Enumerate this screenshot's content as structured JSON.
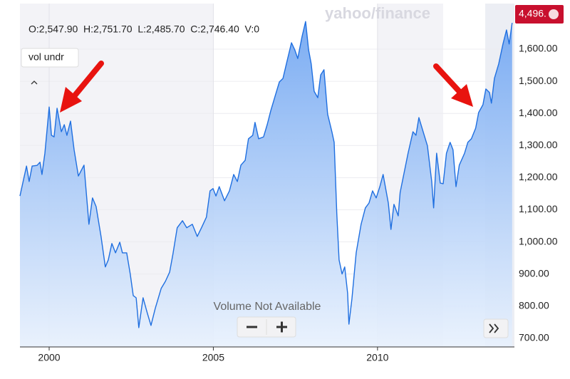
{
  "chart_data": {
    "type": "area",
    "ohlc": "O:2,547.90  H:2,751.70  L:2,485.70  C:2,746.40  V:0",
    "indicator": "vol undr",
    "watermark": "yahoo/finance",
    "price_tag": "4,496.",
    "volume_note": "Volume Not Available",
    "color": "#1f6fe0",
    "grid": true,
    "xlim": [
      1999.11,
      2014.17
    ],
    "xticks": [
      2000,
      2005,
      2010
    ],
    "ylim": [
      673,
      1742
    ],
    "yticks": [
      {
        "value": 700,
        "label": "700.00"
      },
      {
        "value": 800,
        "label": "800.00"
      },
      {
        "value": 900,
        "label": "900.00"
      },
      {
        "value": 1000,
        "label": "1,000.00"
      },
      {
        "value": 1100,
        "label": "1,100.00"
      },
      {
        "value": 1200,
        "label": "1,200.00"
      },
      {
        "value": 1300,
        "label": "1,300.00"
      },
      {
        "value": 1400,
        "label": "1,400.00"
      },
      {
        "value": 1500,
        "label": "1,500.00"
      },
      {
        "value": 1600,
        "label": "1,600.00"
      }
    ],
    "x": [
      1999.11,
      1999.31,
      1999.39,
      1999.48,
      1999.63,
      1999.72,
      1999.78,
      1999.87,
      2000.0,
      2000.07,
      2000.15,
      2000.24,
      2000.37,
      2000.46,
      2000.54,
      2000.65,
      2000.76,
      2000.89,
      2001.06,
      2001.21,
      2001.32,
      2001.43,
      2001.58,
      2001.71,
      2001.8,
      2001.91,
      2002.02,
      2002.15,
      2002.23,
      2002.36,
      2002.47,
      2002.56,
      2002.65,
      2002.73,
      2002.86,
      2002.99,
      2003.1,
      2003.23,
      2003.41,
      2003.54,
      2003.67,
      2003.77,
      2003.9,
      2004.06,
      2004.19,
      2004.36,
      2004.51,
      2004.64,
      2004.79,
      2004.9,
      2004.99,
      2005.08,
      2005.18,
      2005.34,
      2005.49,
      2005.62,
      2005.73,
      2005.84,
      2005.97,
      2006.07,
      2006.2,
      2006.27,
      2006.38,
      2006.53,
      2006.64,
      2006.75,
      2006.88,
      2007.01,
      2007.12,
      2007.25,
      2007.38,
      2007.48,
      2007.57,
      2007.7,
      2007.81,
      2007.9,
      2007.98,
      2008.07,
      2008.18,
      2008.27,
      2008.37,
      2008.48,
      2008.61,
      2008.68,
      2008.76,
      2008.83,
      2008.92,
      2009.0,
      2009.09,
      2009.13,
      2009.22,
      2009.35,
      2009.5,
      2009.63,
      2009.74,
      2009.85,
      2009.96,
      2010.07,
      2010.17,
      2010.33,
      2010.41,
      2010.5,
      2010.63,
      2010.69,
      2010.8,
      2010.93,
      2011.08,
      2011.17,
      2011.26,
      2011.39,
      2011.52,
      2011.65,
      2011.71,
      2011.8,
      2011.91,
      2012.0,
      2012.1,
      2012.21,
      2012.3,
      2012.39,
      2012.49,
      2012.65,
      2012.75,
      2012.86,
      2012.99,
      2013.08,
      2013.21,
      2013.3,
      2013.41,
      2013.47,
      2013.56,
      2013.69,
      2013.82,
      2013.93,
      2014.01,
      2014.1
    ],
    "values": [
      1143,
      1236,
      1188,
      1236,
      1238,
      1248,
      1210,
      1276,
      1420,
      1332,
      1327,
      1416,
      1343,
      1365,
      1332,
      1376,
      1287,
      1205,
      1239,
      1055,
      1137,
      1110,
      1017,
      922,
      944,
      995,
      966,
      999,
      966,
      966,
      900,
      833,
      826,
      733,
      826,
      778,
      740,
      793,
      855,
      877,
      906,
      962,
      1044,
      1066,
      1044,
      1055,
      1017,
      1044,
      1077,
      1159,
      1166,
      1143,
      1172,
      1128,
      1159,
      1210,
      1188,
      1239,
      1254,
      1321,
      1332,
      1372,
      1321,
      1327,
      1365,
      1409,
      1454,
      1498,
      1509,
      1565,
      1620,
      1598,
      1571,
      1638,
      1686,
      1598,
      1554,
      1469,
      1449,
      1520,
      1536,
      1398,
      1343,
      1310,
      1088,
      944,
      900,
      922,
      840,
      744,
      822,
      966,
      1055,
      1106,
      1121,
      1159,
      1137,
      1172,
      1210,
      1121,
      1039,
      1117,
      1081,
      1154,
      1210,
      1276,
      1343,
      1332,
      1387,
      1343,
      1299,
      1188,
      1106,
      1276,
      1183,
      1181,
      1276,
      1310,
      1287,
      1172,
      1239,
      1276,
      1310,
      1321,
      1354,
      1403,
      1427,
      1476,
      1465,
      1432,
      1509,
      1554,
      1616,
      1660,
      1616,
      1682
    ]
  }
}
